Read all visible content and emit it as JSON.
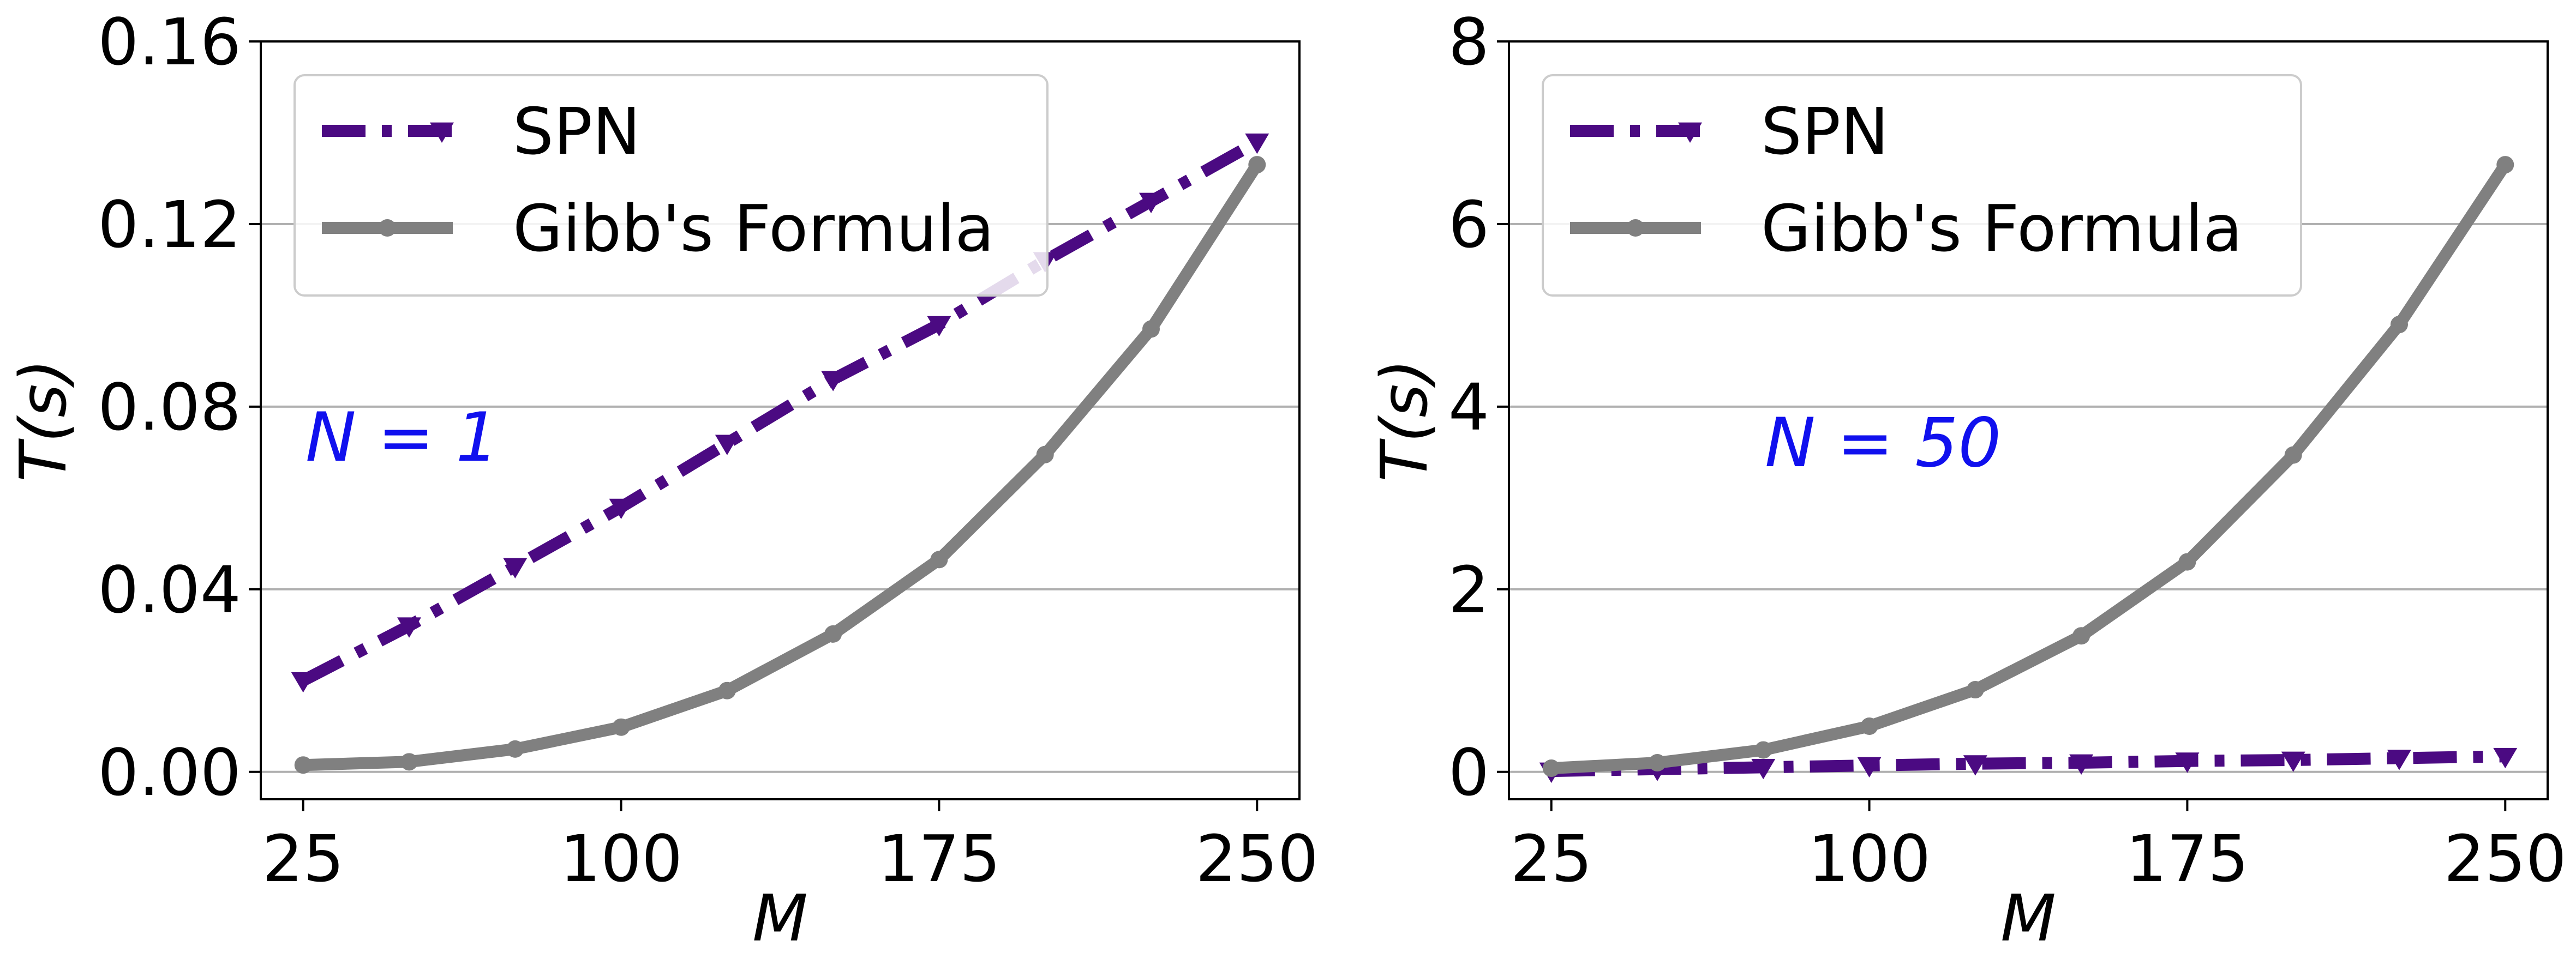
{
  "colors": {
    "spn": "#4b0a82",
    "gibbs": "#808080",
    "grid": "#b0b0b0",
    "annotation": "#1010ee"
  },
  "chart_data": [
    {
      "type": "line",
      "xlabel": "M",
      "ylabel": "T(s)",
      "annotation": "N = 1",
      "xlim": [
        15,
        260
      ],
      "ylim": [
        -0.006,
        0.16
      ],
      "xticks": [
        25,
        100,
        175,
        250
      ],
      "xtick_labels": [
        "25",
        "100",
        "175",
        "250"
      ],
      "yticks": [
        0.0,
        0.04,
        0.08,
        0.12,
        0.16
      ],
      "ytick_labels": [
        "0.00",
        "0.04",
        "0.08",
        "0.12",
        "0.16"
      ],
      "grid": "y-major",
      "legend": "upper-left",
      "x": [
        25,
        50,
        75,
        100,
        125,
        150,
        175,
        200,
        225,
        250
      ],
      "series": [
        {
          "name": "SPN",
          "style": "dash-dot",
          "marker": "triangle-down",
          "color_key": "spn",
          "values": [
            0.02,
            0.032,
            0.045,
            0.058,
            0.072,
            0.086,
            0.098,
            0.112,
            0.125,
            0.138
          ]
        },
        {
          "name": "Gibb's Formula",
          "style": "solid",
          "marker": "circle",
          "color_key": "gibbs",
          "values": [
            0.0015,
            0.0022,
            0.005,
            0.0098,
            0.0178,
            0.0302,
            0.0465,
            0.0695,
            0.097,
            0.133
          ]
        }
      ]
    },
    {
      "type": "line",
      "xlabel": "M",
      "ylabel": "T(s)",
      "annotation": "N = 50",
      "xlim": [
        15,
        260
      ],
      "ylim": [
        -0.3,
        8
      ],
      "xticks": [
        25,
        100,
        175,
        250
      ],
      "xtick_labels": [
        "25",
        "100",
        "175",
        "250"
      ],
      "yticks": [
        0,
        2,
        4,
        6,
        8
      ],
      "ytick_labels": [
        "0",
        "2",
        "4",
        "6",
        "8"
      ],
      "grid": "y-major",
      "legend": "upper-left",
      "x": [
        25,
        50,
        75,
        100,
        125,
        150,
        175,
        200,
        225,
        250
      ],
      "series": [
        {
          "name": "SPN",
          "style": "dash-dot",
          "marker": "triangle-down",
          "color_key": "spn",
          "values": [
            0.01,
            0.03,
            0.05,
            0.07,
            0.09,
            0.1,
            0.12,
            0.13,
            0.15,
            0.17
          ]
        },
        {
          "name": "Gibb's Formula",
          "style": "solid",
          "marker": "circle",
          "color_key": "gibbs",
          "values": [
            0.04,
            0.1,
            0.24,
            0.5,
            0.9,
            1.49,
            2.3,
            3.47,
            4.9,
            6.65
          ]
        }
      ]
    }
  ]
}
